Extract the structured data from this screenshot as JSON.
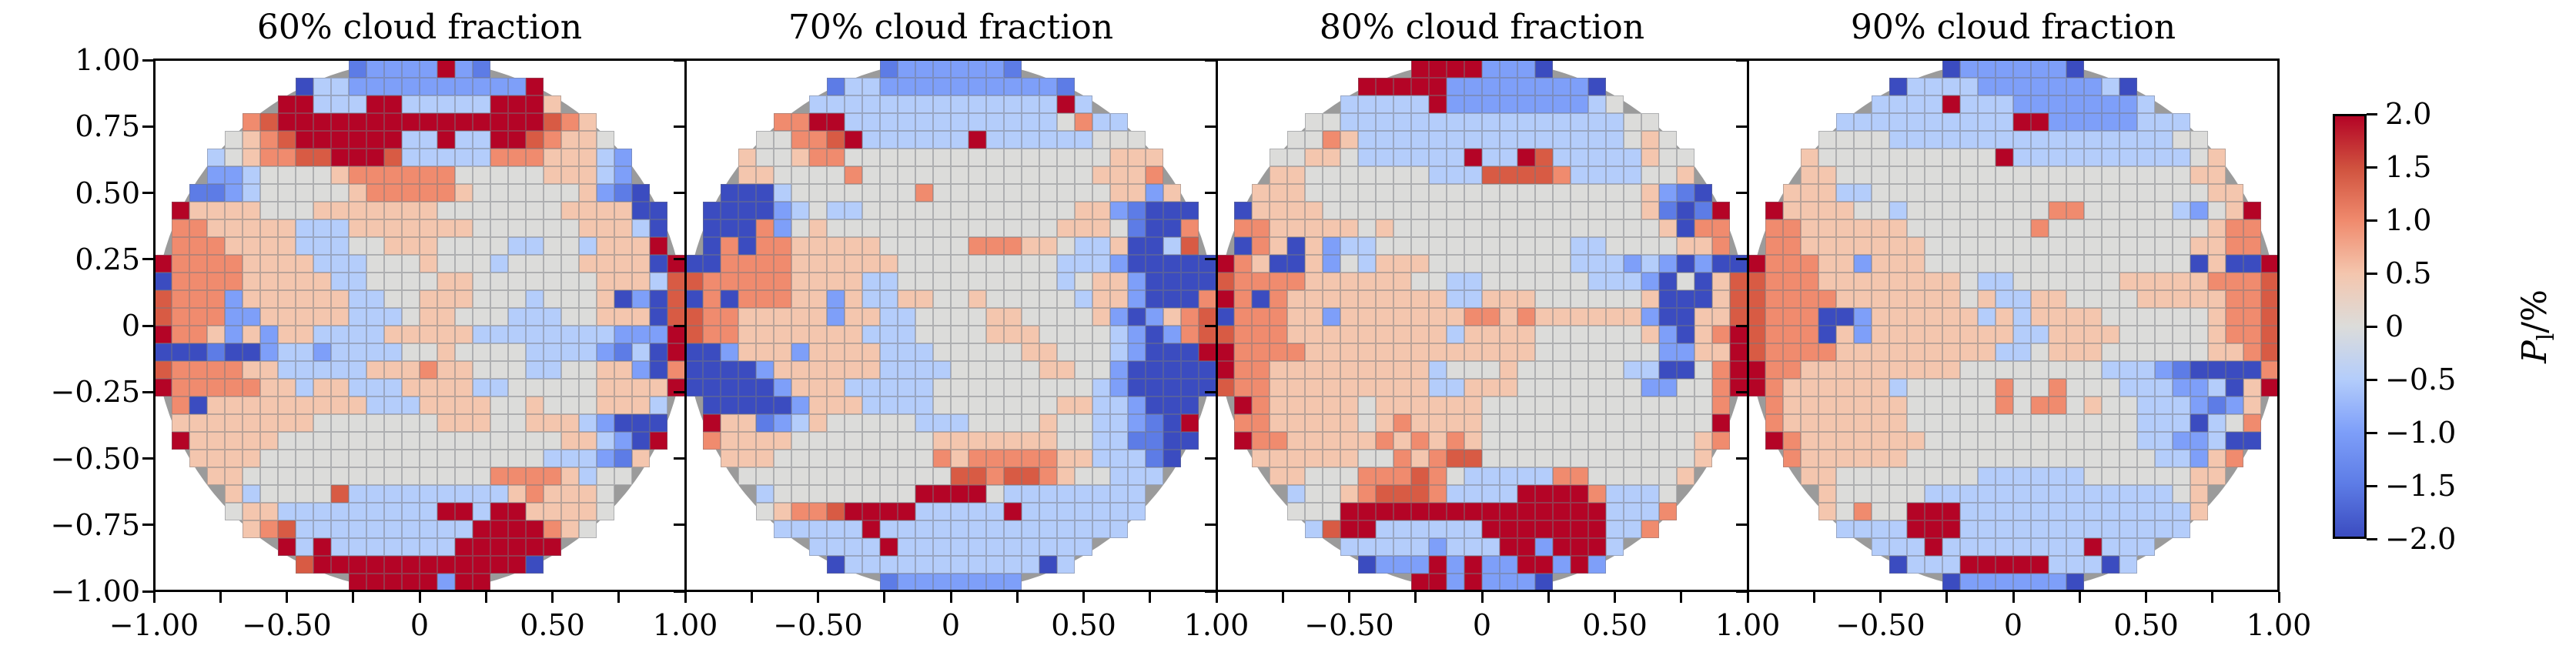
{
  "chart_data": {
    "type": "heatmap",
    "description": "Four polar-disk heatmaps of polarization signal versus cloud fraction; values estimated to nearest 0.5% from coolwarm colormap",
    "grid_size": 30,
    "x_range": [
      -1,
      1
    ],
    "y_range": [
      -1,
      1
    ],
    "value_unit": "%",
    "mask_shape": "disk r<=1",
    "x_tick_labels": [
      "−1.00",
      "−0.50",
      "0",
      "0.50",
      "1.00"
    ],
    "y_tick_labels": [
      "1.00",
      "0.75",
      "0.50",
      "0.25",
      "0",
      "−0.25",
      "−0.50",
      "−0.75",
      "−1.00"
    ],
    "code_to_value": {
      "0": -2.0,
      "1": -1.5,
      "2": -1.0,
      "3": -0.5,
      "4": 0.0,
      "5": 0.5,
      "6": 1.0,
      "7": 1.5,
      "8": 2.0
    },
    "palette": {
      "0": "#3b4cc0",
      "1": "#5d7ce6",
      "2": "#7e9ff9",
      "3": "#b4cdfb",
      "4": "#dcdcda",
      "5": "#f4c6ae",
      "6": "#f08b6e",
      "7": "#d85b44",
      "8": "#b40426"
    },
    "circle_color": "#9b9b9b",
    "colorbar": {
      "tick_labels": [
        "2.0",
        "1.5",
        "1.0",
        "0.5",
        "0",
        "−0.5",
        "−1.0",
        "−1.5",
        "−2.0"
      ],
      "vmin": -2.0,
      "vmax": 2.0,
      "colormap": "coolwarm",
      "label_symbol": "P",
      "label_subscript": "l",
      "label_unit": "/%"
    },
    "panels": [
      {
        "title": "60% cloud fraction",
        "cloud_fraction_percent": 60,
        "grid": [
          "...........12222821...........",
          "........03322222222228........",
          ".......8833388333338885.......",
          ".....67888888888888888765.....",
          "....4567888888338338876554....",
          "...345667788873333366655532...",
          "...223444456666664444455532...",
          "..11234444456666654444445210..",
          ".8555544455555554444444555500.",
          ".6655555333555555544444455530.",
          ".6665555333445554444334435558.",
          "866665555333444544434444555508",
          "066665555533444455444444455537",
          "766625555553344555444344450207",
          "766622555553334554443334455507",
          "866525255333355555333333332228",
          "000100233233334454444333321308",
          "766665533333555655444334455206",
          "866666553553335555334444455558",
          ".6055555555533355554454445553.",
          ".5555555544444445554455532000.",
          ".8555554444444444444444553208.",
          "..55554444444444444444333215..",
          "...554444444444444466665344...",
          "....5344447333333333565554....",
          "....4553333333338838855554....",
          ".....56733333333338888654.....",
          ".......8383333333888888.......",
          "........78888888888880........",
          "...........88888288..........."
        ]
      },
      {
        "title": "70% cloud fraction",
        "cloud_fraction_percent": 70,
        "grid": [
          "...........12222221...........",
          "........13322222222221........",
          ".......3333333333333383.......",
          ".....66883333333333334633.....",
          "....4466783333338333333444....",
          "...544566444444444444444555...",
          "...554444644444444444445556...",
          "..00034444444644444444445525..",
          ".0000234334444444444445521000.",
          ".0006245444444444444455541006.",
          ".0606655555444446665543350037.",
          "006666555555444444444333200000",
          "766666555533444444444345520000",
          "060666552533554454444435520006",
          "766555552553344445544445202567",
          "766555555533344445554444320267",
          "002555255553334444455444320008",
          "000025555553333444445544200000",
          "000002555333334444444443200000",
          ".0000025553333444444455332000.",
          ".8551235444443334444544332108.",
          ".6555544444444555555544331100.",
          "..55544444444465666665533310..",
          "...444444444444776776544333...",
          "....3444444448888433333333....",
          "....4566788883333383333333....",
          ".....33333833333333333333.....",
          ".......3333833333333333.......",
          "........03333333333303........",
          "...........12222222..........."
        ]
      },
      {
        "title": "80% cloud fraction",
        "cloud_fraction_percent": 80,
        "grid": [
          "...........88882220...........",
          "........88888222222220........",
          ".......3333382222222234.......",
          ".....44333333333333333344.....",
          "....4465333333333333333454....",
          "...445543333338338733333544...",
          "...554444444333777763333445...",
          "..55544444444444444444445210..",
          ".0555544444444444444444451018.",
          ".6655555454444444444444445066.",
          ".0650523344444444444334444556.",
          "865005243555444444443332320200",
          "766665555554433444444333204057",
          "860655555555533555444444500057",
          "066655255555556656555555200557",
          "766655555555535555444444520568",
          "866665555555555555444444422558",
          "866555555555344454444443300468",
          "766555555555335554444444224468",
          ".8655555455555544444444444446.",
          ".6655555456555544444444444448.",
          ".8665555565656544444444444456.",
          "..55555544656774444444444445..",
          "...554446667643333366444445...",
          "....3445677763333888863334....",
          "....4448888888888888883336....",
          ".....37883333338888888336.....",
          ".......3333323338828883.......",
          "........02228282288282........",
          "...........88282220..........."
        ]
      },
      {
        "title": "90% cloud fraction",
        "cloud_fraction_percent": 90,
        "grid": [
          "...........02222220...........",
          "........03333222222230........",
          ".......3333833322222223.......",
          ".....33333333338822222333.....",
          "....4444333333333333333344....",
          "...544444444448333333333345...",
          "...554444444444444444444455...",
          "..55533444444444444444444455..",
          ".8555544344444444664444432458.",
          ".6655555544444446444444444566.",
          ".6655555554444444444444445566.",
          "866655255544444444444444405008",
          "766655555555433444444555556667",
          "766665555555453355444455555667",
          "766600255555535355554444445667",
          "766605255555555335555444445667",
          "766665555555553345554444445567",
          "866555555555444444443332100006",
          "865555553444446446444333223058",
          ".6555555544444646645443332125.",
          ".6555555544444444444443330346.",
          ".8655555554444444444443322300.",
          "..65555554444444444444433256..",
          "...554444444433333344444455...",
          "....5444443333333333333345....",
          "....5464488833333333333335....",
          ".....33338883333333333333.....",
          ".......3338333333338333.......",
          "........03338888833303........",
          "...........02222220..........."
        ]
      }
    ]
  }
}
